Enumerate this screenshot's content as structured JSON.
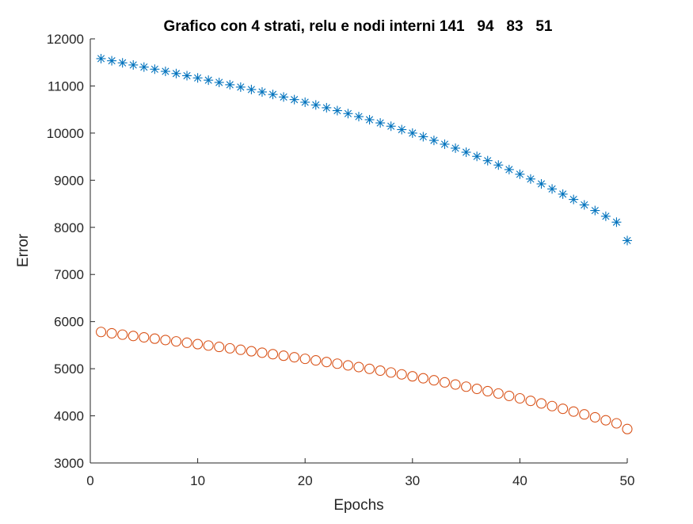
{
  "chart_data": {
    "type": "line",
    "title": "Grafico con 4 strati, relu e nodi interni 141   94   83   51",
    "xlabel": "Epochs",
    "ylabel": "Error",
    "xlim": [
      0,
      50
    ],
    "ylim": [
      3000,
      12000
    ],
    "xticks": [
      "0",
      "10",
      "20",
      "30",
      "40",
      "50"
    ],
    "yticks": [
      "3000",
      "4000",
      "5000",
      "6000",
      "7000",
      "8000",
      "9000",
      "10000",
      "11000",
      "12000"
    ],
    "grid": false,
    "legend": "none",
    "x": [
      1,
      2,
      3,
      4,
      5,
      6,
      7,
      8,
      9,
      10,
      11,
      12,
      13,
      14,
      15,
      16,
      17,
      18,
      19,
      20,
      21,
      22,
      23,
      24,
      25,
      26,
      27,
      28,
      29,
      30,
      31,
      32,
      33,
      34,
      35,
      36,
      37,
      38,
      39,
      40,
      41,
      42,
      43,
      44,
      45,
      46,
      47,
      48,
      49,
      50
    ],
    "series": [
      {
        "marker": "asterisk",
        "color": "#0072BD",
        "values": [
          11580,
          11535,
          11491,
          11446,
          11401,
          11356,
          11310,
          11264,
          11218,
          11171,
          11123,
          11075,
          11026,
          10976,
          10925,
          10873,
          10820,
          10766,
          10711,
          10655,
          10597,
          10538,
          10477,
          10414,
          10350,
          10284,
          10216,
          10146,
          10074,
          10000,
          9923,
          9845,
          9764,
          9680,
          9594,
          9506,
          9415,
          9322,
          9226,
          9127,
          9026,
          8922,
          8815,
          8705,
          8592,
          8476,
          8357,
          8235,
          8110,
          7720
        ]
      },
      {
        "marker": "circle",
        "color": "#D95319",
        "values": [
          5780,
          5752,
          5723,
          5695,
          5666,
          5638,
          5609,
          5580,
          5551,
          5522,
          5492,
          5463,
          5433,
          5402,
          5371,
          5340,
          5308,
          5276,
          5243,
          5210,
          5177,
          5142,
          5107,
          5071,
          5035,
          4997,
          4959,
          4920,
          4880,
          4839,
          4797,
          4754,
          4710,
          4665,
          4619,
          4572,
          4523,
          4474,
          4423,
          4371,
          4318,
          4263,
          4207,
          4150,
          4091,
          4031,
          3969,
          3906,
          3841,
          3720
        ]
      }
    ]
  }
}
